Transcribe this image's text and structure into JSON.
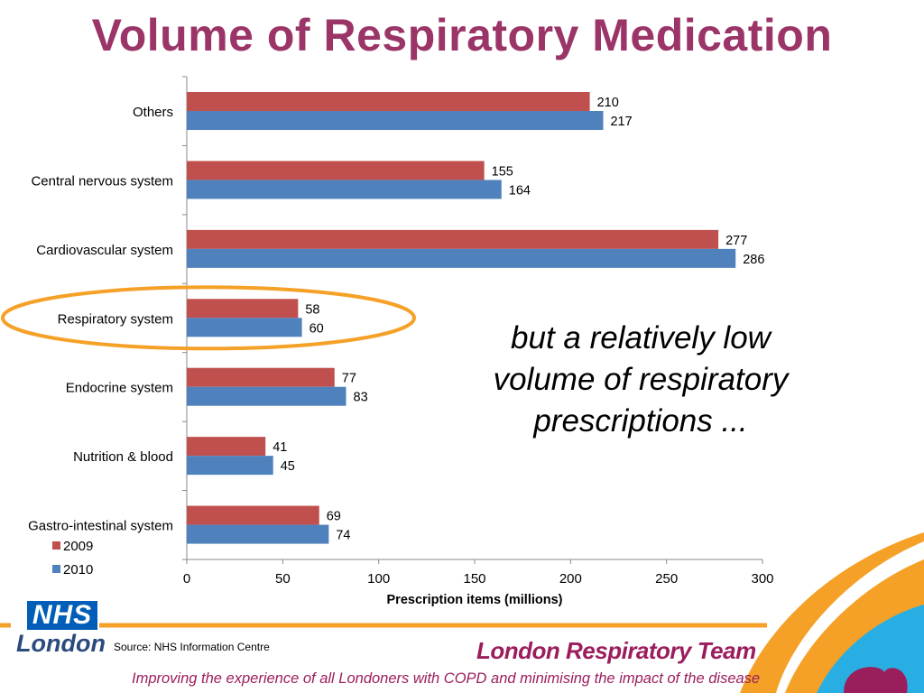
{
  "title": "Volume of Respiratory Medication",
  "callout": "but a relatively low volume of respiratory prescriptions ...",
  "source": "Source:   NHS Information Centre",
  "footer": {
    "logo_text": "NHS",
    "logo_sub": "London",
    "team": "London Respiratory Team",
    "tagline": "Improving the experience of all Londoners with COPD and minimising the impact of the disease"
  },
  "colors": {
    "title": "#9b3467",
    "series_2009": "#c0504d",
    "series_2010": "#4f81bd",
    "highlight": "#f5a026",
    "brand": "#9b1e5c"
  },
  "chart_data": {
    "type": "bar",
    "orientation": "horizontal",
    "categories": [
      "Others",
      "Central nervous system",
      "Cardiovascular system",
      "Respiratory system",
      "Endocrine system",
      "Nutrition & blood",
      "Gastro-intestinal system"
    ],
    "series": [
      {
        "name": "2009",
        "values": [
          210,
          155,
          277,
          58,
          77,
          41,
          69
        ]
      },
      {
        "name": "2010",
        "values": [
          217,
          164,
          286,
          60,
          83,
          45,
          74
        ]
      }
    ],
    "xlabel": "Prescription items (millions)",
    "ylabel": "",
    "xlim": [
      0,
      300
    ],
    "xticks": [
      0,
      50,
      100,
      150,
      200,
      250,
      300
    ],
    "highlighted_category": "Respiratory system",
    "legend": "bottom-left",
    "grid": false
  }
}
